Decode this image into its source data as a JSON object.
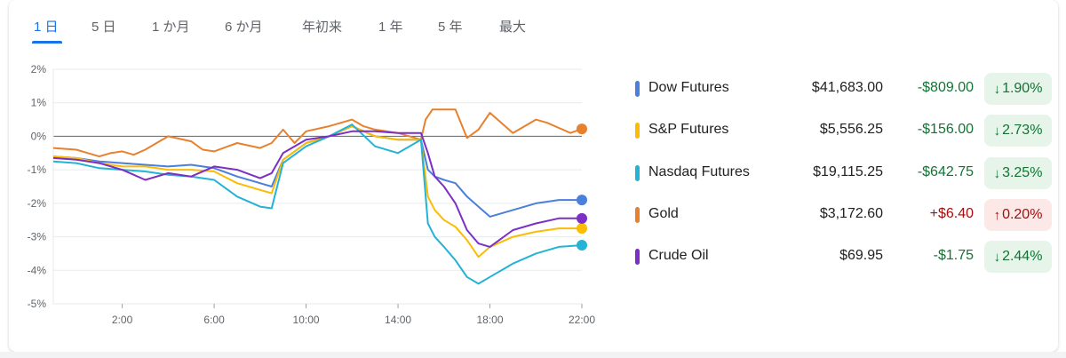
{
  "tabs": [
    {
      "label": "1 日",
      "active": true
    },
    {
      "label": "5 日",
      "active": false
    },
    {
      "label": "1 か月",
      "active": false
    },
    {
      "label": "6 か月",
      "active": false
    },
    {
      "label": "年初来",
      "active": false
    },
    {
      "label": "1 年",
      "active": false
    },
    {
      "label": "5 年",
      "active": false
    },
    {
      "label": "最大",
      "active": false
    }
  ],
  "colors": {
    "accent": "#1a73e8",
    "down_text": "#137333",
    "down_bg": "#e6f4ea",
    "up_text": "#a50e0e",
    "up_bg": "#fce8e6"
  },
  "instruments": [
    {
      "name": "Dow Futures",
      "price": "$41,683.00",
      "change": "-$809.00",
      "percent": "1.90%",
      "direction": "down",
      "arrow": "↓",
      "color": "#4a7fdc"
    },
    {
      "name": "S&P Futures",
      "price": "$5,556.25",
      "change": "-$156.00",
      "percent": "2.73%",
      "direction": "down",
      "arrow": "↓",
      "color": "#fbbc04"
    },
    {
      "name": "Nasdaq Futures",
      "price": "$19,115.25",
      "change": "-$642.75",
      "percent": "3.25%",
      "direction": "down",
      "arrow": "↓",
      "color": "#24b3d4"
    },
    {
      "name": "Gold",
      "price": "$3,172.60",
      "change": "+$6.40",
      "percent": "0.20%",
      "direction": "up",
      "arrow": "↑",
      "color": "#e8812d"
    },
    {
      "name": "Crude Oil",
      "price": "$69.95",
      "change": "-$1.75",
      "percent": "2.44%",
      "direction": "down",
      "arrow": "↓",
      "color": "#7b2fc4"
    }
  ],
  "chart_data": {
    "type": "line",
    "y_tick_labels": [
      "2%",
      "1%",
      "0%",
      "-1%",
      "-2%",
      "-3%",
      "-4%",
      "-5%"
    ],
    "y_ticks": [
      2,
      1,
      0,
      -1,
      -2,
      -3,
      -4,
      -5
    ],
    "ylim": [
      -5,
      2
    ],
    "x_tick_labels": [
      "2:00",
      "6:00",
      "10:00",
      "14:00",
      "18:00",
      "22:00"
    ],
    "x_ticks": [
      2,
      6,
      10,
      14,
      18,
      22
    ],
    "xlim": [
      -1,
      22
    ],
    "baseline": 0,
    "grid": true,
    "series": [
      {
        "name": "Gold",
        "color": "#e8812d",
        "x": [
          -1,
          0,
          0.5,
          1,
          1.5,
          2,
          2.5,
          3,
          4,
          5,
          5.5,
          6,
          7,
          8,
          8.5,
          9,
          9.5,
          10,
          11,
          12,
          12.5,
          13,
          14,
          15,
          15.2,
          15.5,
          16,
          16.5,
          17,
          17.5,
          18,
          19,
          20,
          20.5,
          21,
          21.5,
          22
        ],
        "y": [
          -0.35,
          -0.4,
          -0.5,
          -0.6,
          -0.5,
          -0.45,
          -0.55,
          -0.4,
          0,
          -0.15,
          -0.4,
          -0.45,
          -0.2,
          -0.35,
          -0.2,
          0.2,
          -0.2,
          0.15,
          0.3,
          0.5,
          0.3,
          0.2,
          0.1,
          -0.1,
          0.5,
          0.8,
          0.8,
          0.8,
          -0.05,
          0.2,
          0.7,
          0.1,
          0.5,
          0.4,
          0.25,
          0.1,
          0.22
        ]
      },
      {
        "name": "Dow Futures",
        "color": "#4a7fdc",
        "x": [
          -1,
          0,
          1,
          2,
          3,
          4,
          5,
          6,
          7,
          8,
          8.5,
          9,
          10,
          11,
          12,
          13,
          14,
          15,
          15.3,
          15.6,
          16,
          16.5,
          17,
          17.5,
          18,
          19,
          20,
          21,
          22
        ],
        "y": [
          -0.6,
          -0.65,
          -0.75,
          -0.8,
          -0.85,
          -0.9,
          -0.85,
          -0.95,
          -1.2,
          -1.4,
          -1.5,
          -0.7,
          -0.2,
          0,
          0.3,
          0,
          -0.1,
          -0.1,
          -1,
          -1.2,
          -1.3,
          -1.4,
          -1.8,
          -2.1,
          -2.4,
          -2.2,
          -2,
          -1.9,
          -1.9
        ]
      },
      {
        "name": "S&P Futures",
        "color": "#fbbc04",
        "x": [
          -1,
          0,
          1,
          2,
          3,
          4,
          5,
          6,
          7,
          8,
          8.5,
          9,
          10,
          11,
          12,
          13,
          14,
          15,
          15.3,
          15.6,
          16,
          16.5,
          17,
          17.5,
          18,
          19,
          20,
          21,
          22
        ],
        "y": [
          -0.6,
          -0.65,
          -0.8,
          -0.9,
          -0.9,
          -1,
          -1,
          -1.05,
          -1.4,
          -1.6,
          -1.7,
          -0.7,
          -0.2,
          0,
          0.3,
          0,
          -0.1,
          -0.1,
          -1.8,
          -2.2,
          -2.5,
          -2.7,
          -3.1,
          -3.6,
          -3.3,
          -3,
          -2.85,
          -2.75,
          -2.75
        ]
      },
      {
        "name": "Nasdaq Futures",
        "color": "#24b3d4",
        "x": [
          -1,
          0,
          1,
          2,
          3,
          4,
          5,
          6,
          7,
          8,
          8.5,
          9,
          10,
          11,
          12,
          13,
          14,
          15,
          15.3,
          15.6,
          16,
          16.5,
          17,
          17.5,
          18,
          19,
          20,
          21,
          22
        ],
        "y": [
          -0.75,
          -0.8,
          -0.95,
          -1,
          -1.05,
          -1.15,
          -1.2,
          -1.3,
          -1.8,
          -2.1,
          -2.15,
          -0.8,
          -0.3,
          0,
          0.35,
          -0.3,
          -0.5,
          -0.1,
          -2.6,
          -3,
          -3.3,
          -3.7,
          -4.2,
          -4.4,
          -4.2,
          -3.8,
          -3.5,
          -3.3,
          -3.25
        ]
      },
      {
        "name": "Crude Oil",
        "color": "#7b2fc4",
        "x": [
          -1,
          0,
          1,
          2,
          3,
          4,
          5,
          6,
          7,
          8,
          8.5,
          9,
          10,
          11,
          12,
          13,
          14,
          15,
          15.3,
          15.6,
          16,
          16.5,
          17,
          17.5,
          18,
          19,
          20,
          21,
          22
        ],
        "y": [
          -0.65,
          -0.7,
          -0.8,
          -1,
          -1.3,
          -1.1,
          -1.2,
          -0.9,
          -1,
          -1.25,
          -1.1,
          -0.5,
          -0.1,
          0,
          0.15,
          0.15,
          0.1,
          0.1,
          -0.5,
          -1.2,
          -1.5,
          -2,
          -2.8,
          -3.2,
          -3.3,
          -2.8,
          -2.6,
          -2.45,
          -2.45
        ]
      }
    ]
  }
}
